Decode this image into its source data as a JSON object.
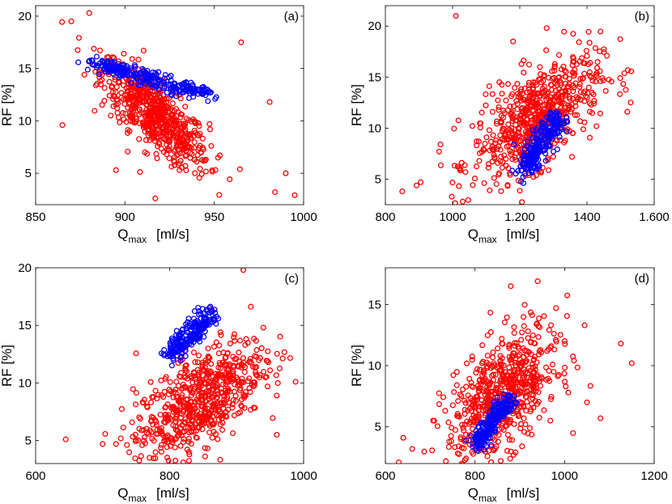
{
  "figure": {
    "name": "RF vs Qmax scatter panels"
  },
  "colors": {
    "red_series": "#ff0000",
    "blue_series": "#0000ff",
    "axis": "#000000"
  },
  "chart_data": [
    {
      "type": "scatter",
      "panel_label": "(a)",
      "xlabel_main": "Q",
      "xlabel_sub": "max",
      "xlabel_unit": "[ml/s]",
      "ylabel": "RF [%]",
      "xlim": [
        850,
        1000
      ],
      "ylim": [
        2,
        21
      ],
      "xticks": [
        850,
        900,
        950,
        1000
      ],
      "xtick_labels": [
        "850",
        "900",
        "950",
        "1000"
      ],
      "yticks": [
        5,
        10,
        15,
        20
      ],
      "ytick_labels": [
        "5",
        "10",
        "15",
        "20"
      ],
      "series": [
        {
          "name": "red",
          "color": "#ff0000",
          "count": 650,
          "cloud": {
            "cx": 917,
            "cy": 10.5,
            "sx": 15,
            "sy": 2.6,
            "corr": -0.78
          },
          "outliers": [
            [
              865,
              9.6
            ],
            [
              870,
              19.5
            ],
            [
              880,
              20.3
            ],
            [
              984,
              3.2
            ],
            [
              995,
              2.9
            ],
            [
              990,
              5.0
            ],
            [
              981,
              11.8
            ],
            [
              965,
              17.5
            ],
            [
              917,
              2.6
            ],
            [
              895,
              5.3
            ]
          ]
        },
        {
          "name": "blue",
          "color": "#0000ff",
          "count": 260,
          "band": {
            "x0": 882,
            "y0": 15.6,
            "x1": 943,
            "y1": 12.6,
            "wx": 5,
            "wy": 0.3
          }
        }
      ]
    },
    {
      "type": "scatter",
      "panel_label": "(b)",
      "xlabel_main": "Q",
      "xlabel_sub": "max",
      "xlabel_unit": "[ml/s]",
      "ylabel": "RF [%]",
      "xlim": [
        800,
        1600
      ],
      "ylim": [
        2.5,
        22
      ],
      "xticks": [
        800,
        1000,
        1200,
        1400,
        1600
      ],
      "xtick_labels": [
        "800",
        "1000",
        "1.200",
        "1400",
        "1.600"
      ],
      "yticks": [
        5,
        10,
        15,
        20
      ],
      "ytick_labels": [
        "5",
        "10",
        "15",
        "20"
      ],
      "series": [
        {
          "name": "red",
          "color": "#ff0000",
          "count": 650,
          "cloud": {
            "cx": 1250,
            "cy": 11.0,
            "sx": 95,
            "sy": 3.0,
            "corr": 0.62
          },
          "outliers": [
            [
              850,
              3.8
            ],
            [
              1010,
              21.0
            ],
            [
              1530,
              12.5
            ],
            [
              1520,
              11.6
            ],
            [
              960,
              7.7
            ],
            [
              905,
              4.7
            ],
            [
              1030,
              2.8
            ],
            [
              1280,
              19.8
            ],
            [
              1180,
              18.5
            ]
          ]
        },
        {
          "name": "blue",
          "color": "#0000ff",
          "count": 240,
          "band": {
            "x0": 1210,
            "y0": 5.8,
            "x1": 1320,
            "y1": 11.4,
            "wx": 16,
            "wy": 0.6
          }
        }
      ]
    },
    {
      "type": "scatter",
      "panel_label": "(c)",
      "xlabel_main": "Q",
      "xlabel_sub": "max",
      "xlabel_unit": "[ml/s]",
      "ylabel": "RF [%]",
      "xlim": [
        600,
        1000
      ],
      "ylim": [
        3,
        20
      ],
      "xticks": [
        600,
        800,
        1000
      ],
      "xtick_labels": [
        "600",
        "800",
        "1000"
      ],
      "yticks": [
        5,
        10,
        15,
        20
      ],
      "ytick_labels": [
        "5",
        "10",
        "15",
        "20"
      ],
      "series": [
        {
          "name": "red",
          "color": "#ff0000",
          "count": 650,
          "cloud": {
            "cx": 845,
            "cy": 8.5,
            "sx": 48,
            "sy": 2.6,
            "corr": 0.62
          },
          "outliers": [
            [
              645,
              5.1
            ],
            [
              988,
              10.1
            ],
            [
              910,
              19.8
            ],
            [
              770,
              3.5
            ],
            [
              700,
              4.7
            ],
            [
              720,
              4.7
            ],
            [
              960,
              5.5
            ],
            [
              940,
              14.8
            ]
          ]
        },
        {
          "name": "blue",
          "color": "#0000ff",
          "count": 220,
          "band": {
            "x0": 800,
            "y0": 12.5,
            "x1": 862,
            "y1": 16.0,
            "wx": 7,
            "wy": 0.5
          }
        }
      ]
    },
    {
      "type": "scatter",
      "panel_label": "(d)",
      "xlabel_main": "Q",
      "xlabel_sub": "max",
      "xlabel_unit": "[ml/s]",
      "ylabel": "RF [%]",
      "xlim": [
        600,
        1200
      ],
      "ylim": [
        2,
        18
      ],
      "xticks": [
        600,
        800,
        1000,
        1200
      ],
      "xtick_labels": [
        "600",
        "800",
        "1000",
        "1200"
      ],
      "yticks": [
        5,
        10,
        15
      ],
      "ytick_labels": [
        "5",
        "10",
        "15"
      ],
      "series": [
        {
          "name": "red",
          "color": "#ff0000",
          "count": 650,
          "cloud": {
            "cx": 860,
            "cy": 7.5,
            "sx": 62,
            "sy": 2.7,
            "corr": 0.55
          },
          "outliers": [
            [
              1150,
              10.2
            ],
            [
              1080,
              5.7
            ],
            [
              630,
              2.1
            ],
            [
              640,
              4.1
            ],
            [
              880,
              16.5
            ],
            [
              940,
              16.9
            ],
            [
              1050,
              7.0
            ],
            [
              660,
              3.2
            ]
          ]
        },
        {
          "name": "blue",
          "color": "#0000ff",
          "count": 230,
          "band": {
            "x0": 800,
            "y0": 3.5,
            "x1": 882,
            "y1": 7.5,
            "wx": 9,
            "wy": 0.4
          }
        }
      ]
    }
  ]
}
